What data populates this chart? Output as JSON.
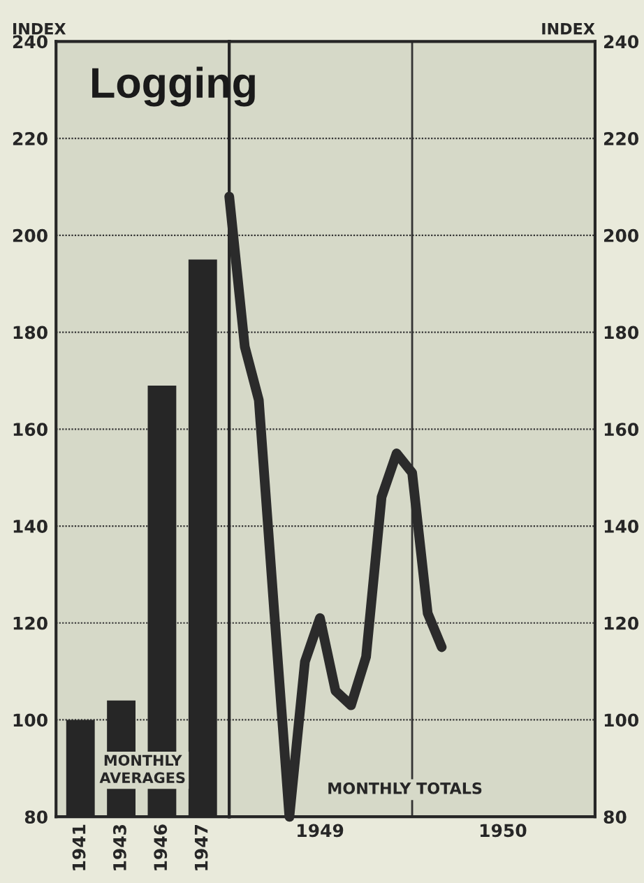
{
  "chart_data": [
    {
      "type": "bar",
      "title": "Logging",
      "ylabel": "INDEX",
      "categories": [
        "1941",
        "1943",
        "1946",
        "1947"
      ],
      "values": [
        100,
        104,
        169,
        195
      ],
      "color": "#262626",
      "ylim": [
        80,
        240
      ],
      "yticks": [
        80,
        100,
        120,
        140,
        160,
        180,
        200,
        220,
        240
      ],
      "grid": "y",
      "annotations": [
        "MONTHLY AVERAGES"
      ]
    },
    {
      "type": "line",
      "ylabel": "INDEX",
      "x": [
        "1949-01",
        "1949-02",
        "1949-03",
        "1949-04",
        "1949-05",
        "1949-06",
        "1949-07",
        "1949-08",
        "1949-09",
        "1949-10",
        "1949-11",
        "1949-12",
        "1950-01",
        "1950-02",
        "1950-03"
      ],
      "values": [
        208,
        177,
        166,
        122,
        80,
        112,
        121,
        106,
        103,
        113,
        146,
        155,
        151,
        122,
        115
      ],
      "color": "#2b2b2b",
      "xlim": [
        "1949-01",
        "1951-01"
      ],
      "xticks": [
        {
          "value": "1949-07",
          "label": "1949"
        },
        {
          "value": "1950-07",
          "label": "1950"
        }
      ],
      "ylim": [
        80,
        240
      ],
      "yticks": [
        80,
        100,
        120,
        140,
        160,
        180,
        200,
        220,
        240
      ],
      "grid": "y",
      "ref_lines": [
        {
          "axis": "x",
          "value": "1950-01",
          "color": "#333333"
        }
      ],
      "annotations": [
        "MONTHLY TOTALS"
      ]
    }
  ]
}
